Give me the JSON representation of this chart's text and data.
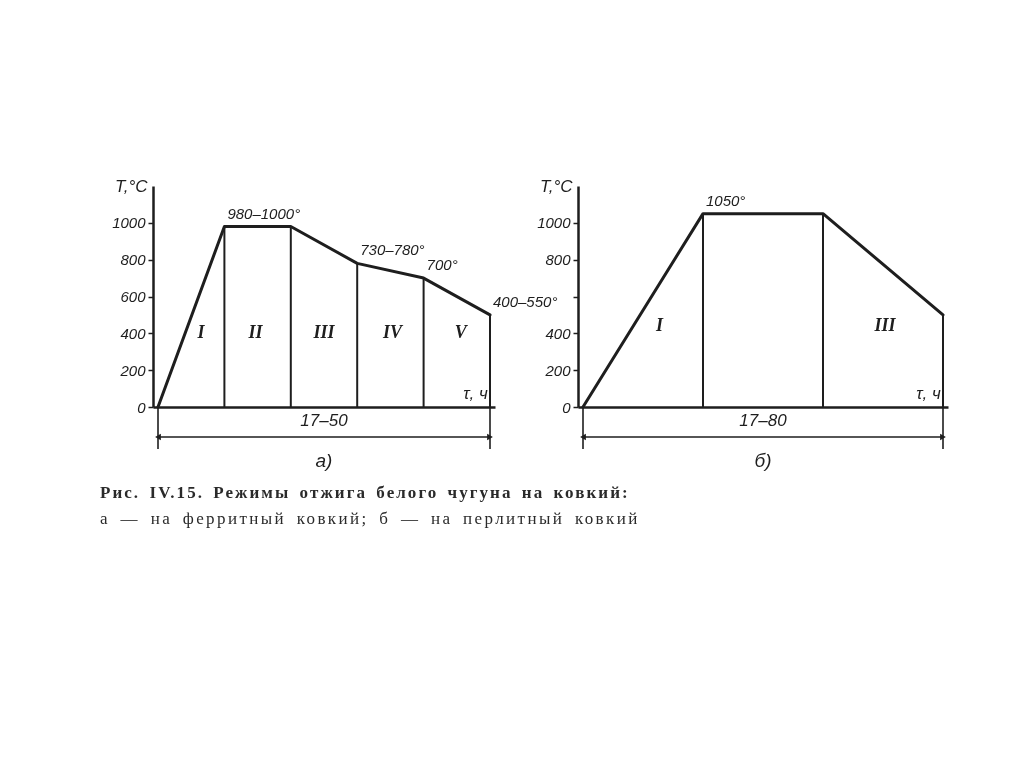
{
  "chart_data": [
    {
      "type": "line",
      "title": "а)",
      "xlabel": "τ, ч",
      "ylabel": "T,°C",
      "categories": [
        null,
        null,
        null,
        null,
        null,
        null
      ],
      "series": [
        {
          "type": "bar",
          "color": "#1e1e1e",
          "values": [
            null,
            980,
            980,
            780,
            700,
            500
          ]
        },
        {
          "type": "line",
          "color": "#1e1e1e",
          "values": [
            0,
            980,
            980,
            780,
            700,
            500
          ],
          "value_labels": [
            null,
            "980–1000°",
            null,
            "730–780°",
            "700°",
            "400–550°"
          ]
        }
      ],
      "ylim": [
        0,
        1200
      ],
      "yticks": [
        0,
        200,
        400,
        600,
        800,
        1000
      ],
      "tick_labels": "y",
      "annotations": [
        "I",
        "II",
        "III",
        "IV",
        "V",
        "17–50"
      ]
    },
    {
      "type": "line",
      "title": "б)",
      "xlabel": "τ, ч",
      "ylabel": "T,°C",
      "categories": [
        null,
        null,
        null,
        null
      ],
      "series": [
        {
          "type": "bar",
          "color": "#1e1e1e",
          "values": [
            null,
            1050,
            1050,
            500
          ]
        },
        {
          "type": "line",
          "color": "#1e1e1e",
          "values": [
            0,
            1050,
            1050,
            500
          ],
          "value_labels": [
            null,
            "1050°",
            null,
            null
          ]
        }
      ],
      "ylim": [
        0,
        1200
      ],
      "yticks": [
        0,
        200,
        400,
        {
          "value": 600,
          "label": null
        },
        800,
        1000
      ],
      "tick_labels": "y",
      "annotations": [
        "I",
        "III",
        "17–80"
      ]
    },
    {
      "type": "other",
      "title": "Рис. IV.15. Режимы отжига белого чугуна на ковкий:",
      "subtitle": "а — на ферритный ковкий; б — на перлитный ковкий"
    }
  ]
}
